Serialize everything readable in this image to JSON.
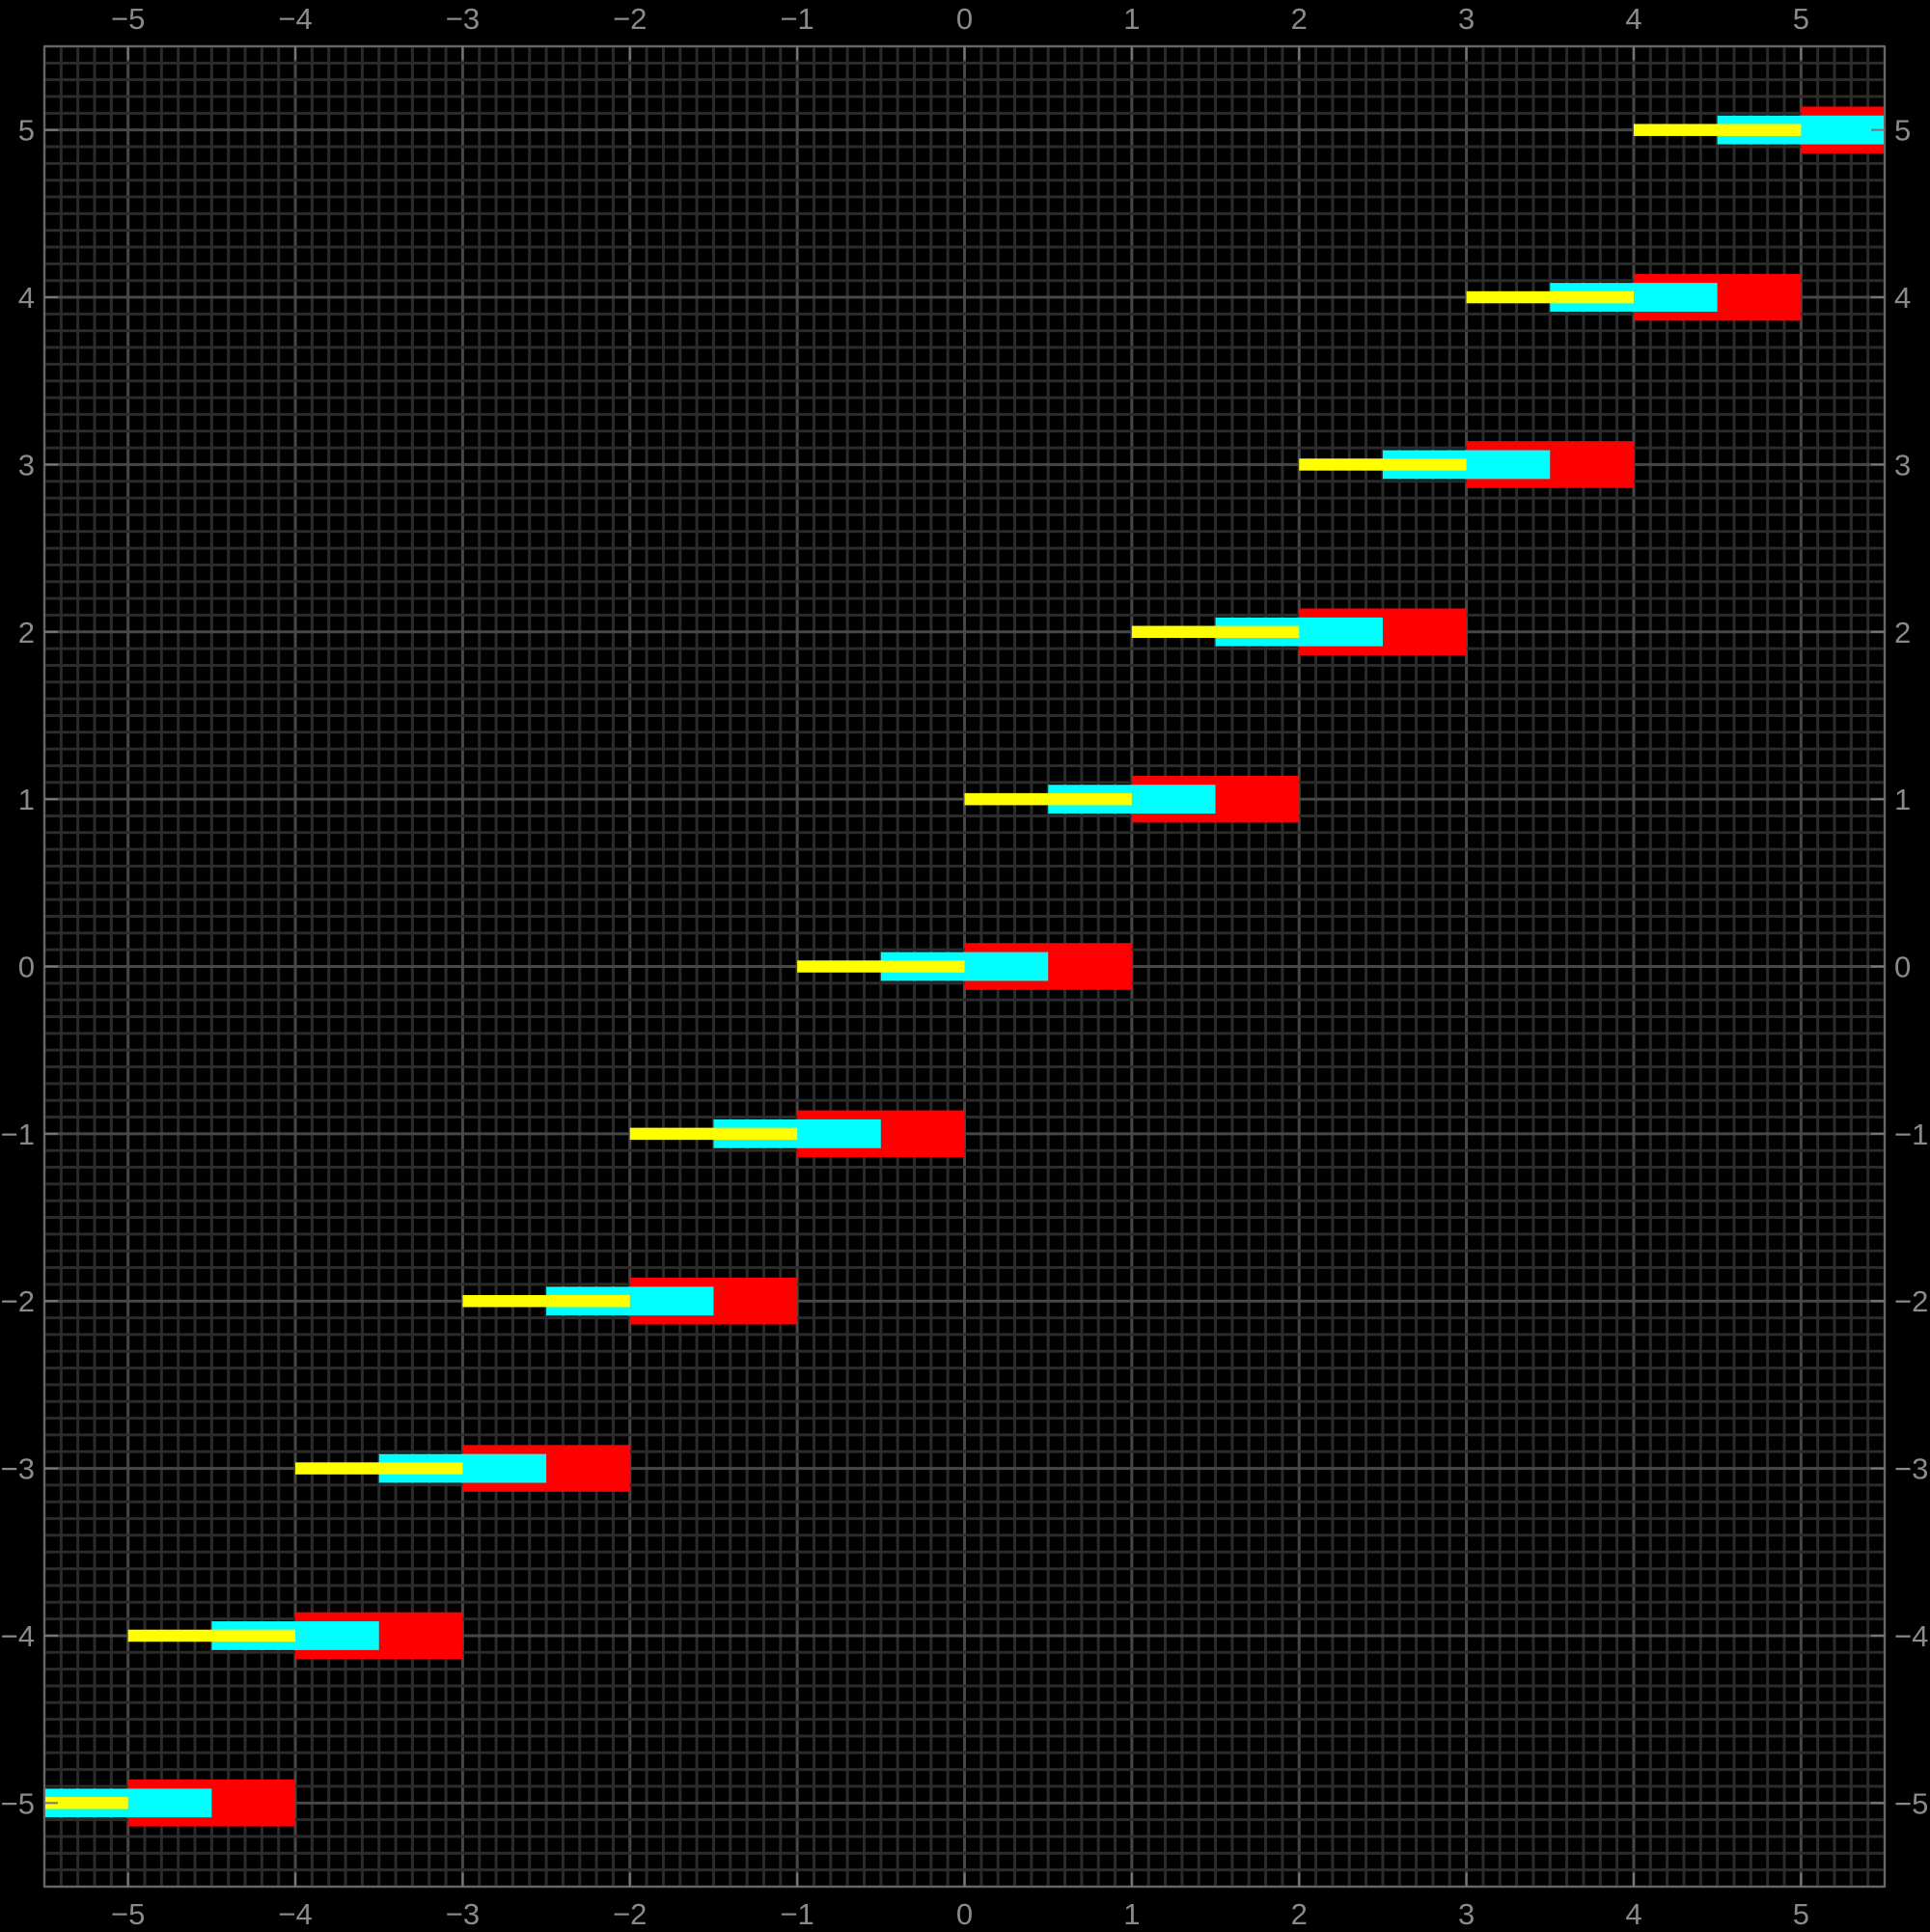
{
  "chart_data": {
    "type": "bar",
    "title": "",
    "xlabel": "",
    "ylabel": "",
    "xlim": [
      -5.5,
      5.5
    ],
    "ylim": [
      -5.5,
      5.5
    ],
    "grid": true,
    "grid_minor_step": 0.1,
    "background": "#000000",
    "x_ticks": [
      "−5",
      "−4",
      "−3",
      "−2",
      "−1",
      "0",
      "1",
      "2",
      "3",
      "4",
      "5"
    ],
    "y_ticks": [
      "−5",
      "−4",
      "−3",
      "−2",
      "−1",
      "0",
      "1",
      "2",
      "3",
      "4",
      "5"
    ],
    "tick_values": [
      -5,
      -4,
      -3,
      -2,
      -1,
      0,
      1,
      2,
      3,
      4,
      5
    ],
    "y": [
      -5,
      -4,
      -3,
      -2,
      -1,
      0,
      1,
      2,
      3,
      4,
      5
    ],
    "series": [
      {
        "color": "#ff0000",
        "x_start": [
          -5,
          -4,
          -3,
          -2,
          -1,
          0,
          1,
          2,
          3,
          4,
          5
        ],
        "x_end": [
          -4,
          -3,
          -2,
          -1,
          0,
          1,
          2,
          3,
          4,
          5,
          6
        ],
        "half_height": 0.14
      },
      {
        "color": "#00ffff",
        "x_start": [
          -5.5,
          -4.5,
          -3.5,
          -2.5,
          -1.5,
          -0.5,
          0.5,
          1.5,
          2.5,
          3.5,
          4.5
        ],
        "x_end": [
          -4.5,
          -3.5,
          -2.5,
          -1.5,
          -0.5,
          0.5,
          1.5,
          2.5,
          3.5,
          4.5,
          5.5
        ],
        "half_height": 0.086
      },
      {
        "color": "#ffff00",
        "x_start": [
          -6,
          -5,
          -4,
          -3,
          -2,
          -1,
          0,
          1,
          2,
          3,
          4
        ],
        "x_end": [
          -5,
          -4,
          -3,
          -2,
          -1,
          0,
          1,
          2,
          3,
          4,
          5
        ],
        "half_height": 0.036
      }
    ]
  }
}
